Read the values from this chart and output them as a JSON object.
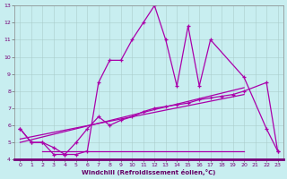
{
  "xlabel": "Windchill (Refroidissement éolien,°C)",
  "xlim": [
    0,
    23
  ],
  "ylim": [
    4,
    13
  ],
  "xticks": [
    0,
    1,
    2,
    3,
    4,
    5,
    6,
    7,
    8,
    9,
    10,
    11,
    12,
    13,
    14,
    15,
    16,
    17,
    18,
    19,
    20,
    21,
    22,
    23
  ],
  "yticks": [
    4,
    5,
    6,
    7,
    8,
    9,
    10,
    11,
    12,
    13
  ],
  "bg_color": "#c8eef0",
  "line_color": "#aa00aa",
  "grid_color": "#aacccc",
  "curve1_x": [
    0,
    1,
    2,
    3,
    4,
    5,
    6,
    7,
    8,
    9,
    10,
    11,
    12,
    13,
    14,
    15,
    16,
    17,
    20,
    22,
    23
  ],
  "curve1_y": [
    5.8,
    5.0,
    5.0,
    4.7,
    4.3,
    4.3,
    4.5,
    8.5,
    9.8,
    9.8,
    11.0,
    12.0,
    13.0,
    11.0,
    8.3,
    11.8,
    8.3,
    11.0,
    8.8,
    5.8,
    4.5
  ],
  "curve2_x": [
    0,
    1,
    2,
    3,
    4,
    5,
    6,
    7,
    8,
    9,
    10,
    11,
    12,
    13,
    14,
    15,
    16,
    17,
    18,
    19,
    20,
    22,
    23
  ],
  "curve2_y": [
    5.8,
    5.0,
    5.0,
    4.3,
    4.3,
    5.0,
    5.8,
    6.5,
    6.0,
    6.3,
    6.5,
    6.8,
    7.0,
    7.1,
    7.2,
    7.3,
    7.5,
    7.6,
    7.7,
    7.8,
    8.0,
    8.5,
    4.5
  ],
  "line1_x": [
    0,
    20
  ],
  "line1_y": [
    5.0,
    8.2
  ],
  "line2_x": [
    0,
    20
  ],
  "line2_y": [
    5.2,
    7.8
  ],
  "flatline_x": [
    2,
    20
  ],
  "flatline_y": [
    4.5,
    4.5
  ]
}
